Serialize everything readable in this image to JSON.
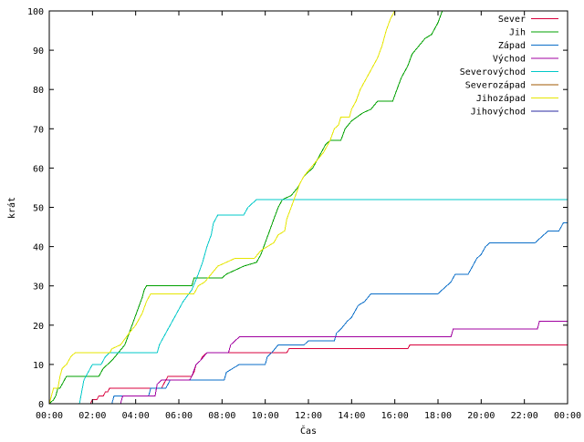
{
  "chart_data": {
    "type": "line",
    "title": "",
    "xlabel": "Čas",
    "ylabel": "krát",
    "xlim": [
      0,
      24
    ],
    "ylim": [
      0,
      100
    ],
    "x_ticks": [
      {
        "value": 0,
        "label": "00:00"
      },
      {
        "value": 2,
        "label": "02:00"
      },
      {
        "value": 4,
        "label": "04:00"
      },
      {
        "value": 6,
        "label": "06:00"
      },
      {
        "value": 8,
        "label": "08:00"
      },
      {
        "value": 10,
        "label": "10:00"
      },
      {
        "value": 12,
        "label": "12:00"
      },
      {
        "value": 14,
        "label": "14:00"
      },
      {
        "value": 16,
        "label": "16:00"
      },
      {
        "value": 18,
        "label": "18:00"
      },
      {
        "value": 20,
        "label": "20:00"
      },
      {
        "value": 22,
        "label": "22:00"
      },
      {
        "value": 24,
        "label": "00:00"
      }
    ],
    "y_ticks": [
      0,
      10,
      20,
      30,
      40,
      50,
      60,
      70,
      80,
      90,
      100
    ],
    "grid": false,
    "legend": "top-right",
    "series": [
      {
        "name": "Sever",
        "color": "#d8003c",
        "points": [
          [
            0,
            0
          ],
          [
            1.9,
            0
          ],
          [
            2.0,
            1
          ],
          [
            2.2,
            1
          ],
          [
            2.3,
            2
          ],
          [
            2.5,
            2
          ],
          [
            2.6,
            3
          ],
          [
            2.7,
            3
          ],
          [
            2.8,
            4
          ],
          [
            5.2,
            4
          ],
          [
            5.3,
            5
          ],
          [
            5.4,
            6
          ],
          [
            5.5,
            7
          ],
          [
            6.6,
            7
          ],
          [
            6.7,
            8
          ],
          [
            6.8,
            10
          ],
          [
            7.0,
            11
          ],
          [
            7.1,
            12
          ],
          [
            7.3,
            13
          ],
          [
            11.0,
            13
          ],
          [
            11.1,
            14
          ],
          [
            16.6,
            14
          ],
          [
            16.7,
            15
          ],
          [
            24,
            15
          ]
        ]
      },
      {
        "name": "Jih",
        "color": "#00a000",
        "points": [
          [
            0,
            0
          ],
          [
            0.2,
            1
          ],
          [
            0.3,
            2
          ],
          [
            0.4,
            4
          ],
          [
            0.5,
            4
          ],
          [
            0.6,
            5
          ],
          [
            0.7,
            6
          ],
          [
            0.8,
            7
          ],
          [
            2.3,
            7
          ],
          [
            2.5,
            9
          ],
          [
            2.7,
            10
          ],
          [
            2.9,
            11
          ],
          [
            3.2,
            13
          ],
          [
            3.5,
            15
          ],
          [
            3.7,
            18
          ],
          [
            3.9,
            21
          ],
          [
            4.1,
            24
          ],
          [
            4.3,
            27
          ],
          [
            4.4,
            29
          ],
          [
            4.5,
            30
          ],
          [
            6.6,
            30
          ],
          [
            6.7,
            32
          ],
          [
            8.0,
            32
          ],
          [
            8.2,
            33
          ],
          [
            8.6,
            34
          ],
          [
            9.0,
            35
          ],
          [
            9.6,
            36
          ],
          [
            9.8,
            38
          ],
          [
            10.0,
            41
          ],
          [
            10.2,
            44
          ],
          [
            10.4,
            47
          ],
          [
            10.6,
            50
          ],
          [
            10.8,
            52
          ],
          [
            11.2,
            53
          ],
          [
            11.5,
            55
          ],
          [
            11.8,
            58
          ],
          [
            12.2,
            60
          ],
          [
            12.5,
            63
          ],
          [
            12.8,
            66
          ],
          [
            13.0,
            67
          ],
          [
            13.5,
            67
          ],
          [
            13.7,
            70
          ],
          [
            14.0,
            72
          ],
          [
            14.5,
            74
          ],
          [
            14.9,
            75
          ],
          [
            15.2,
            77
          ],
          [
            15.9,
            77
          ],
          [
            16.1,
            80
          ],
          [
            16.3,
            83
          ],
          [
            16.6,
            86
          ],
          [
            16.8,
            89
          ],
          [
            17.1,
            91
          ],
          [
            17.4,
            93
          ],
          [
            17.7,
            94
          ],
          [
            18.0,
            97
          ],
          [
            18.2,
            100
          ]
        ]
      },
      {
        "name": "Západ",
        "color": "#0a6ec8",
        "points": [
          [
            0,
            0
          ],
          [
            2.9,
            0
          ],
          [
            3.0,
            2
          ],
          [
            4.6,
            2
          ],
          [
            4.7,
            4
          ],
          [
            5.4,
            4
          ],
          [
            5.5,
            5
          ],
          [
            5.6,
            6
          ],
          [
            8.1,
            6
          ],
          [
            8.2,
            8
          ],
          [
            8.5,
            9
          ],
          [
            8.8,
            10
          ],
          [
            10.0,
            10
          ],
          [
            10.1,
            12
          ],
          [
            10.3,
            13
          ],
          [
            10.6,
            15
          ],
          [
            11.8,
            15
          ],
          [
            12.0,
            16
          ],
          [
            13.2,
            16
          ],
          [
            13.3,
            18
          ],
          [
            13.5,
            19
          ],
          [
            13.8,
            21
          ],
          [
            14.0,
            22
          ],
          [
            14.2,
            24
          ],
          [
            14.3,
            25
          ],
          [
            14.6,
            26
          ],
          [
            14.9,
            28
          ],
          [
            18.0,
            28
          ],
          [
            18.2,
            29
          ],
          [
            18.4,
            30
          ],
          [
            18.6,
            31
          ],
          [
            18.8,
            33
          ],
          [
            19.4,
            33
          ],
          [
            19.6,
            35
          ],
          [
            19.8,
            37
          ],
          [
            20.0,
            38
          ],
          [
            20.2,
            40
          ],
          [
            20.4,
            41
          ],
          [
            22.5,
            41
          ],
          [
            22.7,
            42
          ],
          [
            22.9,
            43
          ],
          [
            23.1,
            44
          ],
          [
            23.6,
            44
          ],
          [
            23.8,
            46
          ],
          [
            24,
            46
          ]
        ]
      },
      {
        "name": "Východ",
        "color": "#a000a0",
        "points": [
          [
            0,
            0
          ],
          [
            3.3,
            0
          ],
          [
            3.4,
            2
          ],
          [
            4.9,
            2
          ],
          [
            5.0,
            5
          ],
          [
            5.2,
            6
          ],
          [
            6.5,
            6
          ],
          [
            6.6,
            7
          ],
          [
            6.8,
            10
          ],
          [
            7.0,
            11
          ],
          [
            7.3,
            13
          ],
          [
            8.3,
            13
          ],
          [
            8.4,
            15
          ],
          [
            8.6,
            16
          ],
          [
            8.8,
            17
          ],
          [
            18.6,
            17
          ],
          [
            18.7,
            19
          ],
          [
            22.6,
            19
          ],
          [
            22.7,
            21
          ],
          [
            24,
            21
          ]
        ]
      },
      {
        "name": "Severovýchod",
        "color": "#00c8c8",
        "points": [
          [
            0,
            0
          ],
          [
            1.4,
            0
          ],
          [
            1.5,
            3
          ],
          [
            1.6,
            6
          ],
          [
            1.8,
            8
          ],
          [
            2.0,
            10
          ],
          [
            2.4,
            10
          ],
          [
            2.6,
            12
          ],
          [
            2.8,
            13
          ],
          [
            5.0,
            13
          ],
          [
            5.1,
            15
          ],
          [
            5.3,
            17
          ],
          [
            5.6,
            20
          ],
          [
            5.9,
            23
          ],
          [
            6.2,
            26
          ],
          [
            6.6,
            29
          ],
          [
            6.9,
            33
          ],
          [
            7.1,
            36
          ],
          [
            7.3,
            40
          ],
          [
            7.5,
            43
          ],
          [
            7.6,
            46
          ],
          [
            7.8,
            48
          ],
          [
            9.0,
            48
          ],
          [
            9.2,
            50
          ],
          [
            9.4,
            51
          ],
          [
            9.6,
            52
          ],
          [
            24,
            52
          ]
        ]
      },
      {
        "name": "Severozápad",
        "color": "#a05a00",
        "points": [
          [
            0,
            0
          ],
          [
            24,
            0
          ]
        ]
      },
      {
        "name": "Jihozápad",
        "color": "#e6e600",
        "points": [
          [
            0,
            0
          ],
          [
            0.1,
            2
          ],
          [
            0.2,
            4
          ],
          [
            0.4,
            4
          ],
          [
            0.5,
            7
          ],
          [
            0.6,
            9
          ],
          [
            0.8,
            10
          ],
          [
            1.0,
            12
          ],
          [
            1.2,
            13
          ],
          [
            2.8,
            13
          ],
          [
            2.9,
            14
          ],
          [
            3.3,
            15
          ],
          [
            3.7,
            18
          ],
          [
            4.0,
            20
          ],
          [
            4.3,
            23
          ],
          [
            4.5,
            26
          ],
          [
            4.7,
            28
          ],
          [
            6.7,
            28
          ],
          [
            6.9,
            30
          ],
          [
            7.2,
            31
          ],
          [
            7.5,
            33
          ],
          [
            7.8,
            35
          ],
          [
            8.2,
            36
          ],
          [
            8.6,
            37
          ],
          [
            9.5,
            37
          ],
          [
            9.8,
            39
          ],
          [
            10.1,
            40
          ],
          [
            10.4,
            41
          ],
          [
            10.6,
            43
          ],
          [
            10.9,
            44
          ],
          [
            11.0,
            47
          ],
          [
            11.2,
            50
          ],
          [
            11.4,
            53
          ],
          [
            11.6,
            56
          ],
          [
            11.8,
            58
          ],
          [
            12.1,
            60
          ],
          [
            12.4,
            62
          ],
          [
            12.7,
            64
          ],
          [
            13.0,
            67
          ],
          [
            13.2,
            70
          ],
          [
            13.4,
            71
          ],
          [
            13.5,
            73
          ],
          [
            13.9,
            73
          ],
          [
            14.0,
            75
          ],
          [
            14.2,
            77
          ],
          [
            14.4,
            80
          ],
          [
            14.6,
            82
          ],
          [
            14.9,
            85
          ],
          [
            15.2,
            88
          ],
          [
            15.4,
            91
          ],
          [
            15.6,
            95
          ],
          [
            15.8,
            98
          ],
          [
            16.0,
            100
          ]
        ]
      },
      {
        "name": "Jihovýchod",
        "color": "#2828a0",
        "points": [
          [
            0,
            0
          ],
          [
            24,
            0
          ]
        ]
      }
    ]
  }
}
